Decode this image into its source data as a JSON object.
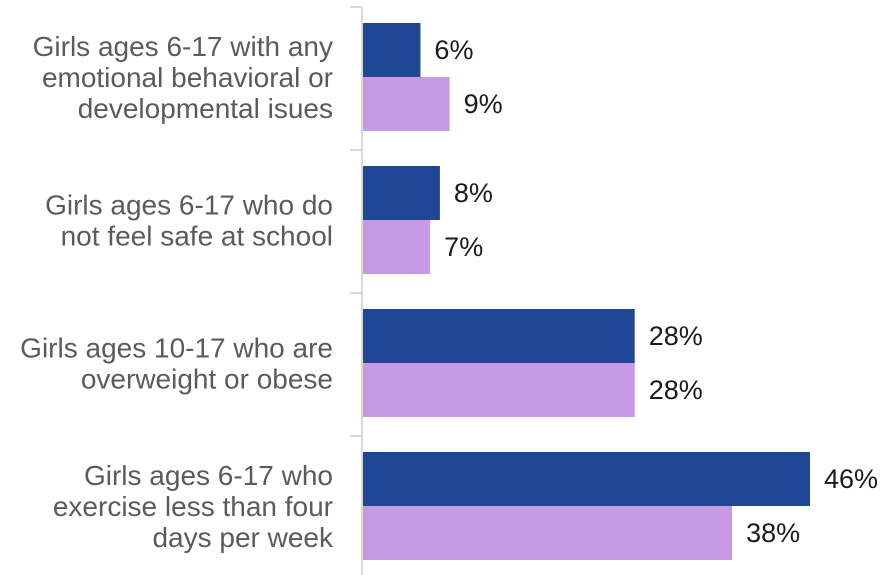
{
  "chart_data": {
    "type": "bar",
    "orientation": "horizontal",
    "title": "",
    "xlabel": "",
    "ylabel": "",
    "xlim": [
      0,
      46
    ],
    "grid": false,
    "legend": "none",
    "categories": [
      [
        "Girls ages 6-17 with any",
        "emotional behavioral or",
        "developmental isues"
      ],
      [
        "Girls ages 6-17 who do",
        "not feel safe at school"
      ],
      [
        "Girls ages 10-17 who are",
        "overweight or obese"
      ],
      [
        "Girls ages 6-17 who",
        "exercise less than four",
        "days per week"
      ]
    ],
    "series": [
      {
        "color": "#1f4795",
        "values": [
          6,
          8,
          28,
          46
        ],
        "labels": [
          "6%",
          "8%",
          "28%",
          "46%"
        ]
      },
      {
        "color": "#c89ae3",
        "values": [
          9,
          7,
          28,
          38
        ],
        "labels": [
          "9%",
          "7%",
          "28%",
          "38%"
        ]
      }
    ],
    "axis_color": "#d9d9d9"
  }
}
